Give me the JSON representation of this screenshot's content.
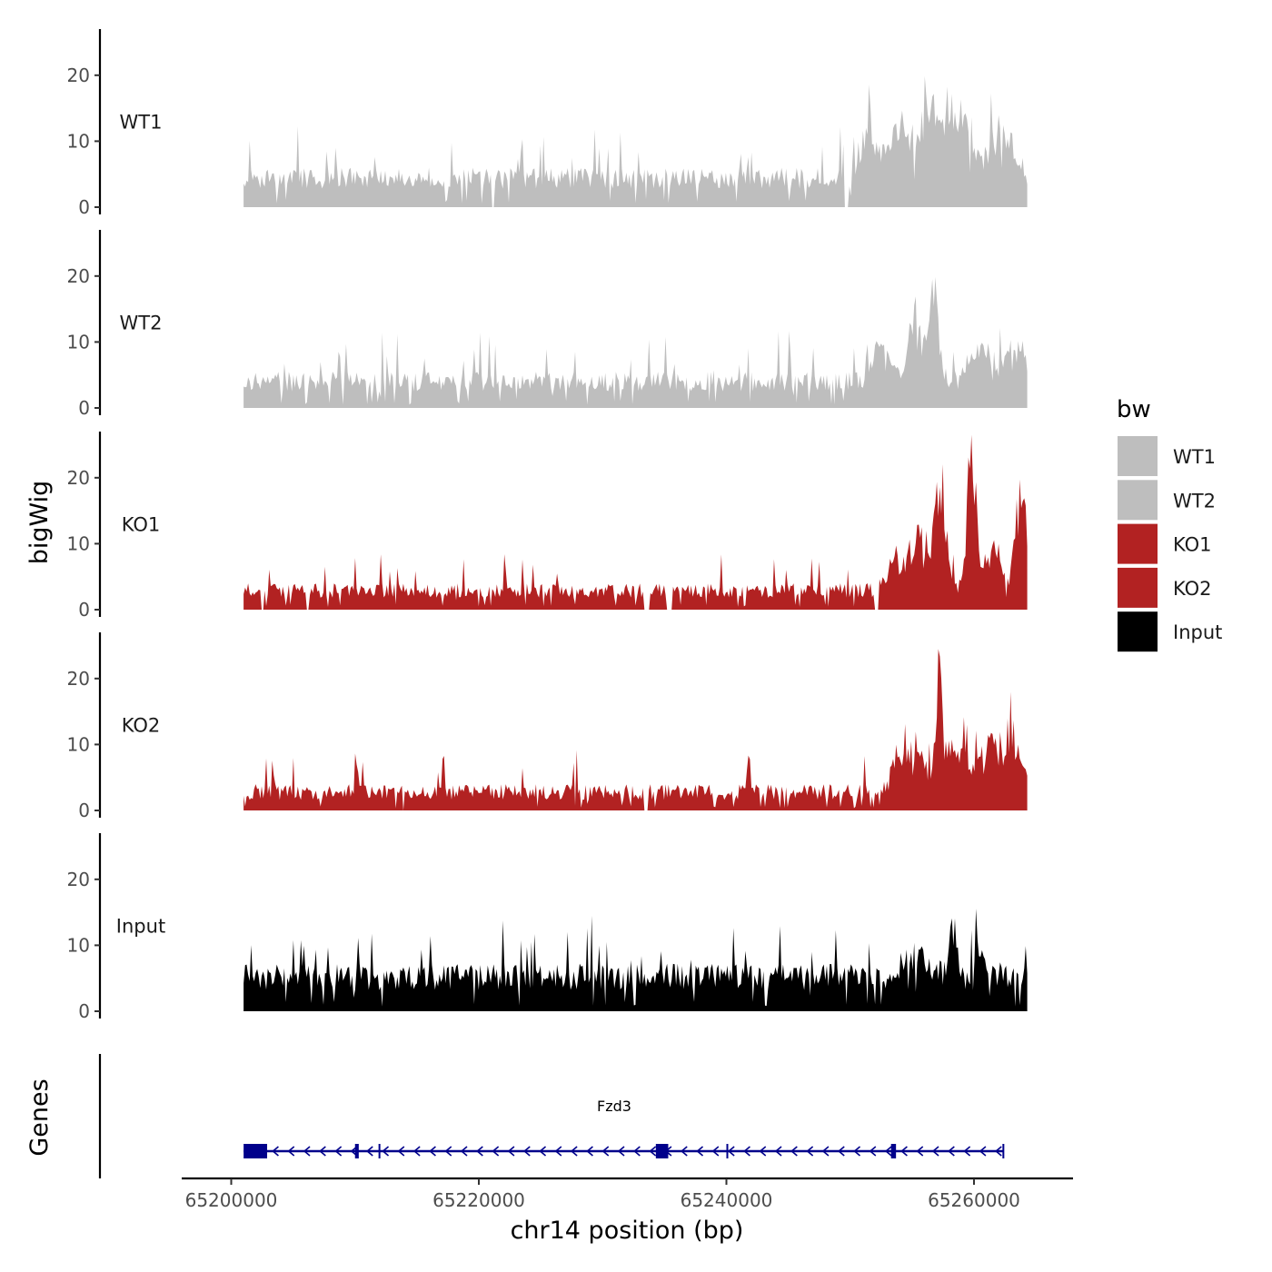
{
  "chart_data": {
    "type": "area",
    "title": "",
    "xlabel": "chr14 position (bp)",
    "ylabel": "bigWig",
    "genes_panel_label": "Genes",
    "xlim": [
      65196000,
      65268000
    ],
    "x_ticks": [
      {
        "value": 65200000,
        "label": "65200000"
      },
      {
        "value": 65220000,
        "label": "65220000"
      },
      {
        "value": 65240000,
        "label": "65240000"
      },
      {
        "value": 65260000,
        "label": "65260000"
      }
    ],
    "ylim": [
      0,
      27
    ],
    "y_ticks": [
      {
        "value": 0,
        "label": "0"
      },
      {
        "value": 10,
        "label": "10"
      },
      {
        "value": 20,
        "label": "20"
      }
    ],
    "x_range": [
      65201000,
      65264300
    ],
    "series": [
      {
        "name": "WT1",
        "color": "#bebebe",
        "seed": 11,
        "base": 2.8,
        "noise": 3.2,
        "spike_prob": 0.07,
        "spike_amp": 6,
        "peaks": [
          {
            "x": 65251500,
            "w": 900,
            "h": 8
          },
          {
            "x": 65254000,
            "w": 1200,
            "h": 9
          },
          {
            "x": 65256500,
            "w": 900,
            "h": 12
          },
          {
            "x": 65258500,
            "w": 1200,
            "h": 12
          },
          {
            "x": 65262000,
            "w": 1500,
            "h": 8
          }
        ],
        "zero_regions": [
          [
            65221000,
            65221300
          ],
          [
            65249500,
            65249900
          ]
        ]
      },
      {
        "name": "WT2",
        "color": "#bebebe",
        "seed": 23,
        "base": 2.5,
        "noise": 3.0,
        "spike_prob": 0.07,
        "spike_amp": 5,
        "peaks": [
          {
            "x": 65252500,
            "w": 900,
            "h": 6
          },
          {
            "x": 65255500,
            "w": 1000,
            "h": 10
          },
          {
            "x": 65256800,
            "w": 500,
            "h": 14
          },
          {
            "x": 65260500,
            "w": 1500,
            "h": 6
          },
          {
            "x": 65263500,
            "w": 900,
            "h": 7
          }
        ],
        "zero_regions": []
      },
      {
        "name": "KO1",
        "color": "#b22222",
        "seed": 37,
        "base": 1.8,
        "noise": 2.2,
        "spike_prob": 0.06,
        "spike_amp": 4,
        "peaks": [
          {
            "x": 65253500,
            "w": 900,
            "h": 5
          },
          {
            "x": 65255500,
            "w": 1000,
            "h": 10
          },
          {
            "x": 65257300,
            "w": 700,
            "h": 16
          },
          {
            "x": 65259800,
            "w": 500,
            "h": 22
          },
          {
            "x": 65261500,
            "w": 900,
            "h": 8
          },
          {
            "x": 65263800,
            "w": 600,
            "h": 16
          }
        ],
        "zero_regions": [
          [
            65202400,
            65202600
          ],
          [
            65206000,
            65206300
          ],
          [
            65233300,
            65233800
          ],
          [
            65235200,
            65235600
          ],
          [
            65252000,
            65252300
          ]
        ]
      },
      {
        "name": "KO2",
        "color": "#b22222",
        "seed": 53,
        "base": 1.6,
        "noise": 2.4,
        "spike_prob": 0.06,
        "spike_amp": 5,
        "peaks": [
          {
            "x": 65253800,
            "w": 700,
            "h": 6
          },
          {
            "x": 65255300,
            "w": 1000,
            "h": 8
          },
          {
            "x": 65257200,
            "w": 400,
            "h": 17
          },
          {
            "x": 65258500,
            "w": 1500,
            "h": 7
          },
          {
            "x": 65261500,
            "w": 1500,
            "h": 7
          },
          {
            "x": 65263500,
            "w": 900,
            "h": 6
          }
        ],
        "zero_regions": [
          [
            65213800,
            65214000
          ],
          [
            65233300,
            65233700
          ]
        ]
      },
      {
        "name": "Input",
        "color": "#000000",
        "seed": 71,
        "base": 3.2,
        "noise": 4.0,
        "spike_prob": 0.09,
        "spike_amp": 6,
        "peaks": [
          {
            "x": 65255500,
            "w": 1500,
            "h": 3
          },
          {
            "x": 65258300,
            "w": 400,
            "h": 9
          },
          {
            "x": 65260500,
            "w": 600,
            "h": 5
          }
        ],
        "zero_regions": []
      }
    ],
    "legend": {
      "title": "bw",
      "position": "right",
      "entries": [
        {
          "label": "WT1",
          "color": "#bebebe"
        },
        {
          "label": "WT2",
          "color": "#bebebe"
        },
        {
          "label": "KO1",
          "color": "#b22222"
        },
        {
          "label": "KO2",
          "color": "#b22222"
        },
        {
          "label": "Input",
          "color": "#000000"
        }
      ]
    },
    "gene": {
      "name": "Fzd3",
      "color": "#00008b",
      "strand": "-",
      "start": 65201000,
      "end": 65262400,
      "exons": [
        [
          65201000,
          65202900
        ],
        [
          65210000,
          65210300
        ],
        [
          65211900,
          65212000
        ],
        [
          65234300,
          65235300
        ],
        [
          65240000,
          65240100
        ],
        [
          65253300,
          65253700
        ],
        [
          65262300,
          65262400
        ]
      ]
    }
  }
}
